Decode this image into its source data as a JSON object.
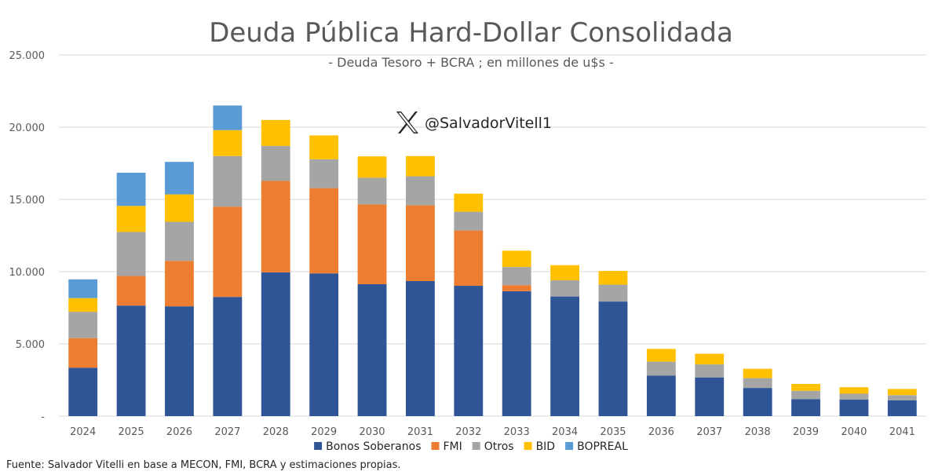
{
  "chart_data": {
    "type": "bar",
    "stacked": true,
    "title": "Deuda Pública Hard-Dollar Consolidada",
    "subtitle": "- Deuda Tesoro + BCRA ; en millones de u$s -",
    "watermark": "@SalvadorVitell1",
    "source": "Fuente: Salvador Vitelli en base a MECON, FMI, BCRA y estimaciones propias.",
    "ylim": [
      0,
      25000
    ],
    "yticks": [
      {
        "value": 0,
        "label": "-"
      },
      {
        "value": 5000,
        "label": "5.000"
      },
      {
        "value": 10000,
        "label": "10.000"
      },
      {
        "value": 15000,
        "label": "15.000"
      },
      {
        "value": 20000,
        "label": "20.000"
      },
      {
        "value": 25000,
        "label": "25.000"
      }
    ],
    "legend_position": "bottom",
    "categories": [
      "2024",
      "2025",
      "2026",
      "2027",
      "2028",
      "2029",
      "2030",
      "2031",
      "2032",
      "2033",
      "2034",
      "2035",
      "2036",
      "2037",
      "2038",
      "2039",
      "2040",
      "2041"
    ],
    "series": [
      {
        "name": "Bonos Soberanos",
        "color": "#2F5597",
        "values": [
          3350,
          7650,
          7600,
          8250,
          9950,
          9880,
          9130,
          9350,
          9020,
          8650,
          8280,
          7930,
          2800,
          2680,
          1950,
          1180,
          1150,
          1100
        ]
      },
      {
        "name": "FMI",
        "color": "#ED7D31",
        "values": [
          2050,
          2050,
          3150,
          6250,
          6330,
          5900,
          5520,
          5250,
          3830,
          420,
          0,
          0,
          0,
          0,
          0,
          0,
          0,
          0
        ]
      },
      {
        "name": "Otros",
        "color": "#A5A5A5",
        "values": [
          1820,
          3050,
          2700,
          3500,
          2420,
          2000,
          1850,
          2000,
          1300,
          1250,
          1120,
          1170,
          970,
          900,
          680,
          570,
          400,
          350
        ]
      },
      {
        "name": "BID",
        "color": "#FFC000",
        "values": [
          950,
          1800,
          1900,
          1800,
          1800,
          1650,
          1480,
          1400,
          1250,
          1130,
          1050,
          950,
          880,
          740,
          650,
          480,
          450,
          430
        ]
      },
      {
        "name": "BOPREAL",
        "color": "#5B9BD5",
        "values": [
          1300,
          2300,
          2250,
          1700,
          0,
          0,
          0,
          0,
          0,
          0,
          0,
          0,
          0,
          0,
          0,
          0,
          0,
          0
        ]
      }
    ]
  }
}
